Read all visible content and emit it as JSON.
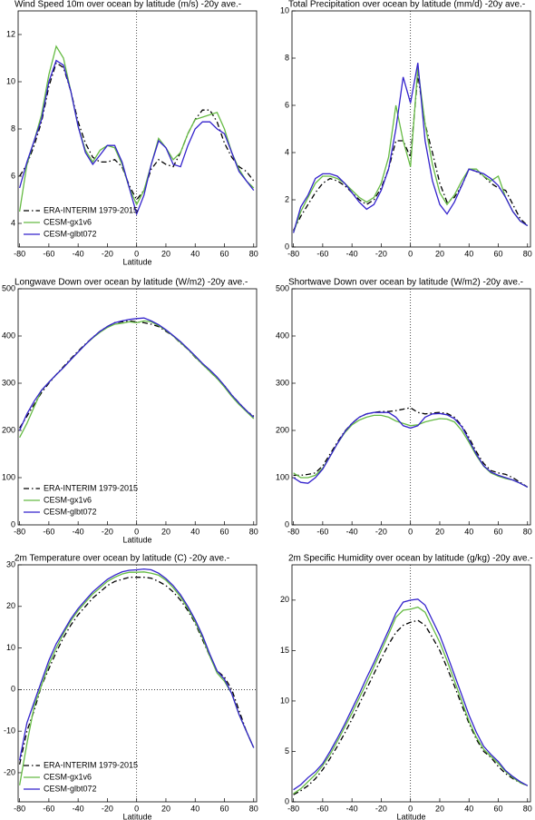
{
  "chart_data": [
    {
      "type": "line",
      "title": "Wind Speed 10m over ocean by latitude (m/s) -20y ave.-",
      "xlabel": "Latitude",
      "legend": "lower left",
      "x": [
        -80,
        -75,
        -70,
        -65,
        -60,
        -55,
        -50,
        -45,
        -40,
        -35,
        -30,
        -25,
        -20,
        -15,
        -10,
        -5,
        0,
        5,
        10,
        15,
        20,
        25,
        30,
        35,
        40,
        45,
        50,
        55,
        60,
        65,
        70,
        75,
        80
      ],
      "xlim": [
        -81,
        82
      ],
      "xticks": [
        -80,
        -60,
        -40,
        -20,
        0,
        20,
        40,
        60,
        80
      ],
      "ylim": [
        3,
        13
      ],
      "yticks": [
        4,
        6,
        8,
        10,
        12
      ],
      "series": [
        {
          "name": "ERA-INTERIM 1979-2015",
          "color": "#000000",
          "style": "dash-dot",
          "values": [
            6.0,
            6.5,
            7.3,
            8.3,
            9.8,
            10.8,
            10.6,
            9.6,
            8.3,
            7.4,
            6.8,
            6.6,
            6.6,
            6.7,
            6.4,
            5.6,
            5.0,
            5.4,
            6.3,
            6.7,
            6.5,
            6.4,
            7.0,
            7.8,
            8.4,
            8.8,
            8.8,
            8.3,
            7.4,
            6.8,
            6.4,
            6.2,
            5.8
          ]
        },
        {
          "name": "CESM-gx1v6",
          "color": "#66bb44",
          "style": "solid",
          "values": [
            4.5,
            6.5,
            7.5,
            8.6,
            10.3,
            11.5,
            11.0,
            9.6,
            8.1,
            7.1,
            6.6,
            7.1,
            7.3,
            7.2,
            6.5,
            5.5,
            4.8,
            5.4,
            6.5,
            7.6,
            7.2,
            6.7,
            7.0,
            7.8,
            8.4,
            8.5,
            8.6,
            8.7,
            8.0,
            7.0,
            6.3,
            5.8,
            5.5
          ]
        },
        {
          "name": "CESM-glbt072",
          "color": "#3322cc",
          "style": "solid",
          "values": [
            5.5,
            6.6,
            7.5,
            8.4,
            10.0,
            10.9,
            10.7,
            9.6,
            8.1,
            7.0,
            6.5,
            6.9,
            7.3,
            7.3,
            6.6,
            5.5,
            4.4,
            5.2,
            6.5,
            7.5,
            7.2,
            6.5,
            6.4,
            7.3,
            8.0,
            8.3,
            8.3,
            8.0,
            7.8,
            7.0,
            6.2,
            5.8,
            5.4
          ]
        }
      ]
    },
    {
      "type": "line",
      "title": "Total Precipitation over ocean by latitude (mm/d) -20y ave.-",
      "x": [
        -80,
        -75,
        -70,
        -65,
        -60,
        -55,
        -50,
        -45,
        -40,
        -35,
        -30,
        -25,
        -20,
        -15,
        -10,
        -5,
        0,
        5,
        10,
        15,
        20,
        25,
        30,
        35,
        40,
        45,
        50,
        55,
        60,
        65,
        70,
        75,
        80
      ],
      "xlim": [
        -81,
        82
      ],
      "xticks": [
        -80,
        -60,
        -40,
        -20,
        0,
        20,
        40,
        60,
        80
      ],
      "ylim": [
        0,
        10
      ],
      "yticks": [
        0,
        2,
        4,
        6,
        8,
        10
      ],
      "series": [
        {
          "color": "#000000",
          "style": "dash-dot",
          "values": [
            0.7,
            1.3,
            1.8,
            2.3,
            2.7,
            2.9,
            2.8,
            2.6,
            2.3,
            2.0,
            1.8,
            2.0,
            2.5,
            3.3,
            4.5,
            4.5,
            3.8,
            7.3,
            5.2,
            4.0,
            2.7,
            1.9,
            2.1,
            2.6,
            3.3,
            3.2,
            3.0,
            2.7,
            2.5,
            2.4,
            1.8,
            1.2,
            0.9
          ]
        },
        {
          "color": "#66bb44",
          "style": "solid",
          "values": [
            0.6,
            1.5,
            2.1,
            2.7,
            3.0,
            3.0,
            2.9,
            2.7,
            2.4,
            2.1,
            1.9,
            2.1,
            2.7,
            3.8,
            6.0,
            4.5,
            3.4,
            7.6,
            5.2,
            3.5,
            2.3,
            1.8,
            2.2,
            2.8,
            3.3,
            3.3,
            3.0,
            2.8,
            3.0,
            2.1,
            1.5,
            1.1,
            0.9
          ]
        },
        {
          "color": "#3322cc",
          "style": "solid",
          "values": [
            0.6,
            1.7,
            2.2,
            2.9,
            3.1,
            3.1,
            3.0,
            2.7,
            2.3,
            1.9,
            1.6,
            1.8,
            2.4,
            3.3,
            5.0,
            7.2,
            6.1,
            7.8,
            4.5,
            2.8,
            1.8,
            1.4,
            1.9,
            2.6,
            3.3,
            3.2,
            3.1,
            2.9,
            2.6,
            2.1,
            1.5,
            1.1,
            0.9
          ]
        }
      ]
    },
    {
      "type": "line",
      "title": "Longwave Down over ocean by latitude (W/m2) -20y ave.-",
      "xlabel": "Latitude",
      "legend": "lower left",
      "x": [
        -80,
        -75,
        -70,
        -65,
        -60,
        -55,
        -50,
        -45,
        -40,
        -35,
        -30,
        -25,
        -20,
        -15,
        -10,
        -5,
        0,
        5,
        10,
        15,
        20,
        25,
        30,
        35,
        40,
        45,
        50,
        55,
        60,
        65,
        70,
        75,
        80
      ],
      "xlim": [
        -81,
        82
      ],
      "xticks": [
        -80,
        -60,
        -40,
        -20,
        0,
        20,
        40,
        60,
        80
      ],
      "ylim": [
        0,
        500
      ],
      "yticks": [
        0,
        100,
        200,
        300,
        400,
        500
      ],
      "series": [
        {
          "name": "ERA-INTERIM 1979-2015",
          "color": "#000000",
          "style": "dash-dot",
          "values": [
            205,
            230,
            255,
            280,
            300,
            318,
            335,
            352,
            368,
            383,
            397,
            410,
            420,
            428,
            430,
            432,
            430,
            428,
            425,
            420,
            410,
            400,
            385,
            372,
            355,
            340,
            325,
            310,
            295,
            275,
            258,
            242,
            230
          ]
        },
        {
          "name": "CESM-gx1v6",
          "color": "#66bb44",
          "style": "solid",
          "values": [
            185,
            215,
            250,
            285,
            302,
            318,
            333,
            350,
            366,
            382,
            396,
            408,
            418,
            425,
            427,
            430,
            428,
            432,
            430,
            422,
            412,
            400,
            386,
            372,
            356,
            340,
            325,
            310,
            292,
            272,
            255,
            240,
            225
          ]
        },
        {
          "name": "CESM-glbt072",
          "color": "#3322cc",
          "style": "solid",
          "values": [
            200,
            235,
            262,
            285,
            302,
            318,
            333,
            350,
            366,
            382,
            397,
            410,
            420,
            428,
            432,
            435,
            437,
            438,
            432,
            424,
            413,
            401,
            388,
            373,
            358,
            342,
            328,
            313,
            295,
            275,
            258,
            242,
            228
          ]
        }
      ]
    },
    {
      "type": "line",
      "title": "Shortwave Down over ocean by latitude (W/m2) -20y ave.-",
      "x": [
        -80,
        -75,
        -70,
        -65,
        -60,
        -55,
        -50,
        -45,
        -40,
        -35,
        -30,
        -25,
        -20,
        -15,
        -10,
        -5,
        0,
        5,
        10,
        15,
        20,
        25,
        30,
        35,
        40,
        45,
        50,
        55,
        60,
        65,
        70,
        75,
        80
      ],
      "xlim": [
        -81,
        82
      ],
      "xticks": [
        -80,
        -60,
        -40,
        -20,
        0,
        20,
        40,
        60,
        80
      ],
      "ylim": [
        0,
        500
      ],
      "yticks": [
        0,
        100,
        200,
        300,
        400,
        500
      ],
      "series": [
        {
          "color": "#000000",
          "style": "dash-dot",
          "values": [
            105,
            105,
            107,
            110,
            125,
            150,
            175,
            198,
            215,
            228,
            235,
            238,
            240,
            240,
            242,
            245,
            248,
            238,
            235,
            237,
            238,
            236,
            228,
            210,
            185,
            155,
            130,
            115,
            110,
            107,
            100,
            90,
            80
          ]
        },
        {
          "color": "#66bb44",
          "style": "solid",
          "values": [
            110,
            100,
            100,
            105,
            120,
            145,
            172,
            195,
            212,
            222,
            228,
            232,
            232,
            228,
            220,
            215,
            210,
            212,
            218,
            222,
            225,
            224,
            218,
            200,
            175,
            147,
            124,
            110,
            103,
            98,
            95,
            88,
            80
          ]
        },
        {
          "color": "#3322cc",
          "style": "solid",
          "values": [
            100,
            90,
            88,
            100,
            118,
            145,
            172,
            197,
            215,
            228,
            235,
            238,
            238,
            238,
            228,
            210,
            205,
            210,
            228,
            235,
            236,
            233,
            225,
            208,
            180,
            150,
            125,
            112,
            105,
            100,
            95,
            88,
            80
          ]
        }
      ]
    },
    {
      "type": "line",
      "title": "2m Temperature over ocean by latitude (C) -20y ave.-",
      "xlabel": "Latitude",
      "legend": "lower left",
      "x": [
        -80,
        -75,
        -70,
        -65,
        -60,
        -55,
        -50,
        -45,
        -40,
        -35,
        -30,
        -25,
        -20,
        -15,
        -10,
        -5,
        0,
        5,
        10,
        15,
        20,
        25,
        30,
        35,
        40,
        45,
        50,
        55,
        60,
        65,
        70,
        75,
        80
      ],
      "xlim": [
        -81,
        82
      ],
      "xticks": [
        -80,
        -60,
        -40,
        -20,
        0,
        20,
        40,
        60,
        80
      ],
      "ylim": [
        -27,
        30
      ],
      "yticks": [
        -20,
        -10,
        0,
        10,
        20,
        30
      ],
      "series": [
        {
          "name": "ERA-INTERIM 1979-2015",
          "color": "#000000",
          "style": "dash-dot",
          "values": [
            -18,
            -10,
            -5,
            1,
            5,
            9,
            12.5,
            15.5,
            18,
            20,
            22,
            23.5,
            25,
            26,
            26.5,
            27,
            27,
            27,
            26.8,
            26,
            25,
            23.5,
            21.5,
            19,
            16,
            12,
            8,
            4.5,
            3,
            0,
            -5,
            -10,
            -14
          ]
        },
        {
          "name": "CESM-gx1v6",
          "color": "#66bb44",
          "style": "solid",
          "values": [
            -23,
            -13,
            -4,
            1,
            6,
            10,
            13.5,
            16.5,
            19,
            21,
            23,
            24.5,
            26,
            27,
            27.8,
            28.2,
            28.2,
            28.3,
            28,
            27.5,
            26.3,
            24.5,
            22.3,
            19.5,
            16.3,
            12.5,
            8,
            4,
            2,
            -1,
            -6,
            -10,
            -14
          ]
        },
        {
          "name": "CESM-glbt072",
          "color": "#3322cc",
          "style": "solid",
          "values": [
            -17,
            -8,
            -3,
            2,
            7,
            11,
            14,
            17,
            19.5,
            21.5,
            23.5,
            25,
            26.5,
            27.5,
            28.3,
            28.7,
            28.8,
            29,
            28.8,
            28,
            26.7,
            25,
            22.8,
            20,
            16.8,
            13,
            8.5,
            4.5,
            2.5,
            -1,
            -6,
            -10,
            -14
          ]
        }
      ]
    },
    {
      "type": "line",
      "title": "2m Specific Humidity over ocean by latitude (g/kg) -20y ave.-",
      "xlabel": "Latitude",
      "x": [
        -80,
        -75,
        -70,
        -65,
        -60,
        -55,
        -50,
        -45,
        -40,
        -35,
        -30,
        -25,
        -20,
        -15,
        -10,
        -5,
        0,
        5,
        10,
        15,
        20,
        25,
        30,
        35,
        40,
        45,
        50,
        55,
        60,
        65,
        70,
        75,
        80
      ],
      "xlim": [
        -81,
        82
      ],
      "xticks": [
        -80,
        -60,
        -40,
        -20,
        0,
        20,
        40,
        60,
        80
      ],
      "ylim": [
        0,
        23.5
      ],
      "yticks": [
        0,
        5,
        10,
        15,
        20
      ],
      "series": [
        {
          "color": "#000000",
          "style": "dash-dot",
          "values": [
            0.7,
            1.1,
            1.6,
            2.3,
            3.2,
            4.3,
            5.5,
            6.8,
            8.2,
            9.7,
            11.2,
            12.7,
            14.2,
            15.6,
            16.8,
            17.5,
            17.8,
            18.0,
            17.5,
            16.3,
            15.0,
            13.3,
            11.5,
            9.6,
            7.8,
            6.2,
            5.0,
            4.4,
            3.5,
            2.8,
            2.3,
            1.9,
            1.6
          ]
        },
        {
          "color": "#66bb44",
          "style": "solid",
          "values": [
            0.8,
            1.3,
            2.0,
            2.7,
            3.6,
            4.7,
            6.0,
            7.4,
            8.8,
            10.3,
            11.8,
            13.4,
            15.0,
            16.6,
            18.3,
            19.0,
            19.1,
            19.3,
            18.8,
            17.3,
            15.8,
            14.0,
            12.0,
            10.0,
            8.0,
            6.4,
            5.2,
            4.5,
            3.8,
            3.0,
            2.4,
            1.9,
            1.6
          ]
        },
        {
          "color": "#3322cc",
          "style": "solid",
          "values": [
            1.2,
            1.7,
            2.4,
            3.0,
            3.8,
            5.0,
            6.3,
            7.7,
            9.2,
            10.7,
            12.3,
            13.8,
            15.4,
            17.0,
            18.7,
            19.8,
            20.0,
            20.1,
            19.5,
            18.0,
            16.5,
            14.6,
            12.6,
            10.6,
            8.6,
            6.9,
            5.5,
            4.7,
            4.0,
            3.1,
            2.5,
            2.0,
            1.6
          ]
        }
      ]
    }
  ]
}
